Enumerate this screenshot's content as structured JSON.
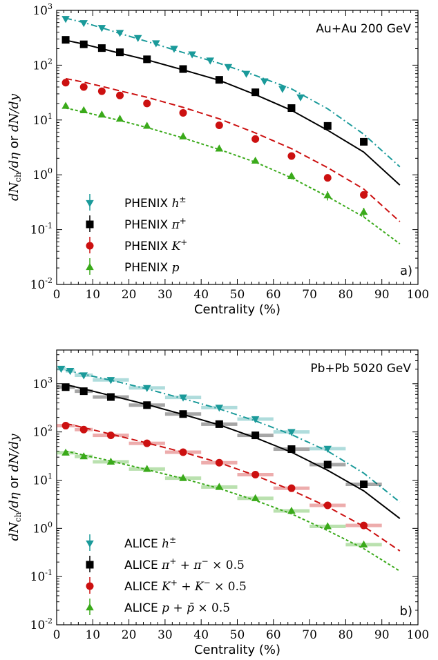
{
  "chart_data": [
    {
      "type": "scatter",
      "panel_label": "a)",
      "system_label": "Au+Au 200 GeV",
      "xlabel": "Centrality (%)",
      "ylabel": "dN_ch/dη or dN/dy",
      "xlim": [
        0,
        100
      ],
      "ylim": [
        0.01,
        1000
      ],
      "yscale": "log",
      "x_ticks": [
        "0",
        "10",
        "20",
        "30",
        "40",
        "50",
        "60",
        "70",
        "80",
        "90",
        "100"
      ],
      "y_ticks": [
        {
          "base": "10",
          "exp": "-2"
        },
        {
          "base": "10",
          "exp": "-1"
        },
        {
          "base": "10",
          "exp": "0"
        },
        {
          "base": "10",
          "exp": "1"
        },
        {
          "base": "10",
          "exp": "2"
        },
        {
          "base": "10",
          "exp": "3"
        }
      ],
      "grid": false,
      "legend_position": "bottom-left",
      "series": [
        {
          "name": "PHENIX h±",
          "color": "#1a9a9a",
          "marker": "triangle-down",
          "curve_dash": "dashdot",
          "x": [
            2.5,
            7.5,
            12.5,
            17.5,
            22.5,
            27.5,
            32.5,
            37.5,
            42.5,
            47.5,
            52.5,
            57.5,
            62.5,
            67.5
          ],
          "values": [
            700,
            590,
            480,
            390,
            315,
            252,
            200,
            158,
            122,
            93,
            70,
            51,
            37,
            26
          ],
          "curve_x": [
            2.5,
            7.5,
            12.5,
            17.5,
            25,
            35,
            45,
            55,
            65,
            75,
            85,
            95
          ],
          "curve_y": [
            720,
            600,
            480,
            380,
            270,
            170,
            108,
            65,
            37,
            16,
            5.5,
            1.4
          ]
        },
        {
          "name": "PHENIX π+",
          "color": "#000000",
          "marker": "square",
          "curve_dash": "solid",
          "x": [
            2.5,
            7.5,
            12.5,
            17.5,
            25,
            35,
            45,
            55,
            65,
            75,
            85
          ],
          "values": [
            290,
            240,
            205,
            172,
            128,
            85,
            54,
            32,
            16.5,
            7.8,
            4
          ],
          "curve_x": [
            2.5,
            7.5,
            12.5,
            17.5,
            25,
            35,
            45,
            55,
            65,
            75,
            85,
            95
          ],
          "curve_y": [
            285,
            242,
            200,
            165,
            125,
            82,
            53,
            29,
            15,
            6.5,
            2.6,
            0.65
          ]
        },
        {
          "name": "PHENIX K+",
          "color": "#cc1010",
          "marker": "circle",
          "curve_dash": "dashed",
          "x": [
            2.5,
            7.5,
            12.5,
            17.5,
            25,
            35,
            45,
            55,
            65,
            75,
            85
          ],
          "values": [
            48,
            40,
            33.5,
            28,
            20,
            13.5,
            8,
            4.5,
            2.2,
            0.88,
            0.43
          ],
          "curve_x": [
            2.5,
            7.5,
            12.5,
            17.5,
            25,
            35,
            45,
            55,
            65,
            75,
            85,
            95
          ],
          "curve_y": [
            57,
            49,
            41,
            34,
            26,
            17,
            10.5,
            5.8,
            3.0,
            1.35,
            0.55,
            0.14
          ]
        },
        {
          "name": "PHENIX p",
          "color": "#3aaa1a",
          "marker": "triangle-up",
          "curve_dash": "dotted",
          "x": [
            2.5,
            7.5,
            12.5,
            17.5,
            25,
            35,
            45,
            55,
            65,
            75,
            85
          ],
          "values": [
            18,
            15,
            12.5,
            10.5,
            7.8,
            5,
            3,
            1.8,
            0.95,
            0.42,
            0.21
          ],
          "y_err": [
            1.5,
            1.2,
            1.0,
            0.9,
            0.6,
            0.4,
            0.3,
            0.2,
            0.12,
            0.08,
            0.04
          ],
          "curve_x": [
            2.5,
            7.5,
            12.5,
            17.5,
            25,
            35,
            45,
            55,
            65,
            75,
            85,
            95
          ],
          "curve_y": [
            16.5,
            14,
            11.7,
            9.8,
            7.3,
            4.7,
            2.9,
            1.7,
            0.88,
            0.4,
            0.17,
            0.055
          ]
        }
      ]
    },
    {
      "type": "scatter",
      "panel_label": "b)",
      "system_label": "Pb+Pb 5020 GeV",
      "xlabel": "Centrality (%)",
      "ylabel": "dN_ch/dη or dN/dy",
      "xlim": [
        0,
        100
      ],
      "ylim": [
        0.01,
        5000
      ],
      "yscale": "log",
      "x_ticks": [
        "0",
        "10",
        "20",
        "30",
        "40",
        "50",
        "60",
        "70",
        "80",
        "90",
        "100"
      ],
      "y_ticks": [
        {
          "base": "10",
          "exp": "-2"
        },
        {
          "base": "10",
          "exp": "-1"
        },
        {
          "base": "10",
          "exp": "0"
        },
        {
          "base": "10",
          "exp": "1"
        },
        {
          "base": "10",
          "exp": "2"
        },
        {
          "base": "10",
          "exp": "3"
        }
      ],
      "grid": false,
      "legend_position": "bottom-left",
      "series": [
        {
          "name": "ALICE h±",
          "color": "#1a9a9a",
          "marker": "triangle-down",
          "curve_dash": "dashdot",
          "x": [
            1.25,
            3.75,
            7.5,
            15,
            25,
            35,
            45,
            55,
            65,
            75
          ],
          "values": [
            2050,
            1850,
            1500,
            1200,
            820,
            520,
            320,
            185,
            100,
            45
          ],
          "x_halfwidth": [
            1.25,
            1.25,
            2.5,
            5,
            5,
            5,
            5,
            5,
            5,
            5
          ],
          "curve_x": [
            2.5,
            7.5,
            12.5,
            17.5,
            25,
            35,
            45,
            55,
            65,
            75,
            85,
            95
          ],
          "curve_y": [
            1900,
            1570,
            1300,
            1070,
            780,
            490,
            300,
            170,
            88,
            40,
            14,
            3.5
          ]
        },
        {
          "name": "ALICE π+ + π− × 0.5",
          "color": "#000000",
          "marker": "square",
          "curve_dash": "solid",
          "x": [
            2.5,
            7.5,
            15,
            25,
            35,
            45,
            55,
            65,
            75,
            85
          ],
          "values": [
            850,
            700,
            530,
            360,
            235,
            145,
            85,
            44,
            21,
            8.2
          ],
          "x_halfwidth": [
            2.5,
            2.5,
            5,
            5,
            5,
            5,
            5,
            5,
            5,
            5
          ],
          "curve_x": [
            2.5,
            7.5,
            12.5,
            17.5,
            25,
            35,
            45,
            55,
            65,
            75,
            85,
            95
          ],
          "curve_y": [
            960,
            780,
            630,
            510,
            370,
            230,
            140,
            76,
            38,
            16,
            6,
            1.6
          ]
        },
        {
          "name": "ALICE K+ + K− × 0.5",
          "color": "#cc1010",
          "marker": "circle",
          "curve_dash": "dashed",
          "x": [
            2.5,
            7.5,
            15,
            25,
            35,
            45,
            55,
            65,
            75,
            85
          ],
          "values": [
            135,
            112,
            85,
            58,
            38,
            23,
            13,
            6.8,
            3.0,
            1.15
          ],
          "x_halfwidth": [
            2.5,
            2.5,
            5,
            5,
            5,
            5,
            5,
            5,
            5,
            5
          ],
          "curve_x": [
            2.5,
            7.5,
            12.5,
            17.5,
            25,
            35,
            45,
            55,
            65,
            75,
            85,
            95
          ],
          "curve_y": [
            150,
            123,
            100,
            81,
            59,
            38,
            23,
            12.5,
            6.2,
            2.8,
            1.1,
            0.34
          ]
        },
        {
          "name": "ALICE p + p̄ × 0.5",
          "color": "#3aaa1a",
          "marker": "triangle-up",
          "curve_dash": "dotted",
          "x": [
            2.5,
            7.5,
            15,
            25,
            35,
            45,
            55,
            65,
            75,
            85
          ],
          "values": [
            37,
            31,
            24,
            17,
            11,
            7.2,
            4.2,
            2.3,
            1.1,
            0.46
          ],
          "x_halfwidth": [
            2.5,
            2.5,
            5,
            5,
            5,
            5,
            5,
            5,
            5,
            5
          ],
          "curve_x": [
            2.5,
            7.5,
            12.5,
            17.5,
            25,
            35,
            45,
            55,
            65,
            75,
            85,
            95
          ],
          "curve_y": [
            40,
            33,
            27.5,
            22.5,
            16.5,
            10.8,
            6.7,
            3.8,
            2.0,
            0.9,
            0.38,
            0.13
          ]
        }
      ]
    }
  ]
}
